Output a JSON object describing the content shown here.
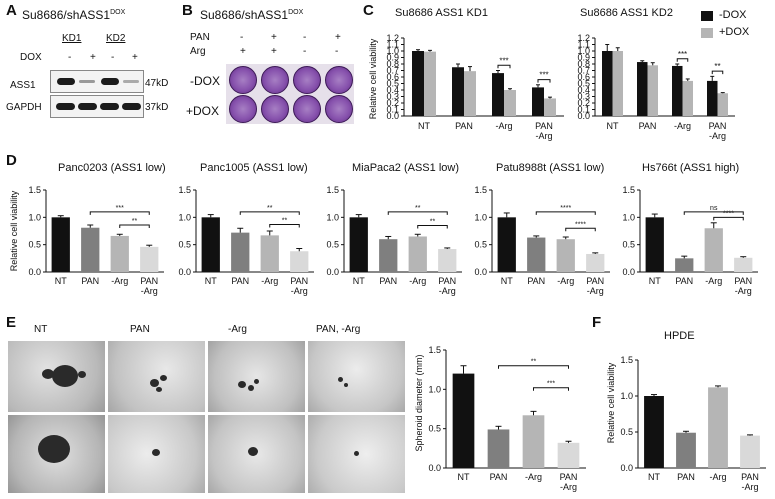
{
  "colors": {
    "black": "#111111",
    "dark_gray": "#7f7f7f",
    "light_gray": "#b5b5b5",
    "very_light_gray": "#d9d9d9",
    "purple": "#8752ad"
  },
  "panel_labels": {
    "a": "A",
    "b": "B",
    "c": "C",
    "d": "D",
    "e": "E",
    "f": "F"
  },
  "panel_a": {
    "title_main": "Su8686/shASS1",
    "title_sup": "DOX",
    "kd1": "KD1",
    "kd2": "KD2",
    "dox_label": "DOX",
    "dox_signs": [
      "-",
      "+",
      "-",
      "+"
    ],
    "rows": [
      {
        "name": "ASS1",
        "size": "47kD",
        "bands": [
          1.0,
          0.25,
          1.0,
          0.3
        ]
      },
      {
        "name": "GAPDH",
        "size": "37kD",
        "bands": [
          1.0,
          1.0,
          1.0,
          1.0
        ]
      }
    ]
  },
  "panel_b": {
    "title_main": "Su8686/shASS1",
    "title_sup": "DOX",
    "pan_label": "PAN",
    "arg_label": "Arg",
    "pan_signs": [
      "-",
      "+",
      "-",
      "+"
    ],
    "arg_signs": [
      "+",
      "+",
      "-",
      "-"
    ],
    "row_labels": [
      "-DOX",
      "+DOX"
    ]
  },
  "panel_c": {
    "legend": {
      "minus": "-DOX",
      "plus": "+DOX"
    },
    "ylabel": "Relative cell viability",
    "chart_data": [
      {
        "type": "bar",
        "title": "Su8686 ASS1 KD1",
        "categories": [
          "NT",
          "PAN",
          "-Arg",
          "PAN\n-Arg"
        ],
        "series": [
          {
            "name": "-DOX",
            "values": [
              1.0,
              0.75,
              0.66,
              0.44
            ],
            "errors": [
              0.02,
              0.05,
              0.04,
              0.04
            ]
          },
          {
            "name": "+DOX",
            "values": [
              0.99,
              0.69,
              0.4,
              0.27
            ],
            "errors": [
              0.02,
              0.07,
              0.02,
              0.02
            ]
          }
        ],
        "yticks": [
          "0.0",
          "0.1",
          "0.2",
          "0.3",
          "0.4",
          "0.5",
          "0.6",
          "0.7",
          "0.8",
          "0.9",
          "1.0",
          "1.1",
          "1.2"
        ],
        "ylim": [
          0,
          1.2
        ],
        "sig": [
          "***",
          "***"
        ]
      },
      {
        "type": "bar",
        "title": "Su8686 ASS1 KD2",
        "categories": [
          "NT",
          "PAN",
          "-Arg",
          "PAN\n-Arg"
        ],
        "series": [
          {
            "name": "-DOX",
            "values": [
              1.0,
              0.83,
              0.77,
              0.54
            ],
            "errors": [
              0.1,
              0.02,
              0.03,
              0.07
            ]
          },
          {
            "name": "+DOX",
            "values": [
              1.0,
              0.78,
              0.54,
              0.35
            ],
            "errors": [
              0.05,
              0.04,
              0.03,
              0.01
            ]
          }
        ],
        "yticks": [
          "0.0",
          "0.1",
          "0.2",
          "0.3",
          "0.4",
          "0.5",
          "0.6",
          "0.7",
          "0.8",
          "0.9",
          "1.0",
          "1.1",
          "1.2"
        ],
        "ylim": [
          0,
          1.2
        ],
        "sig": [
          "***",
          "**"
        ]
      }
    ]
  },
  "panel_d": {
    "ylabel": "Relative cell viability",
    "chart_data": [
      {
        "type": "bar",
        "title": "Panc0203 (ASS1 low)",
        "categories": [
          "NT",
          "PAN",
          "-Arg",
          "PAN\n-Arg"
        ],
        "values": [
          1.0,
          0.81,
          0.66,
          0.46
        ],
        "errors": [
          0.03,
          0.05,
          0.03,
          0.03
        ],
        "sig_top": "***",
        "sig_bottom": "**",
        "yticks": [
          "0.0",
          "0.5",
          "1.0",
          "1.5"
        ],
        "ylim": [
          0,
          1.5
        ]
      },
      {
        "type": "bar",
        "title": "Panc1005 (ASS1 low)",
        "categories": [
          "NT",
          "PAN",
          "-Arg",
          "PAN\n-Arg"
        ],
        "values": [
          1.0,
          0.72,
          0.67,
          0.38
        ],
        "errors": [
          0.05,
          0.08,
          0.08,
          0.05
        ],
        "sig_top": "**",
        "sig_bottom": "**",
        "yticks": [
          "0.0",
          "0.5",
          "1.0",
          "1.5"
        ],
        "ylim": [
          0,
          1.5
        ]
      },
      {
        "type": "bar",
        "title": "MiaPaca2 (ASS1 low)",
        "categories": [
          "NT",
          "PAN",
          "-Arg",
          "PAN\n-Arg"
        ],
        "values": [
          1.0,
          0.6,
          0.65,
          0.42
        ],
        "errors": [
          0.05,
          0.05,
          0.04,
          0.02
        ],
        "sig_top": "**",
        "sig_bottom": "**",
        "yticks": [
          "0.0",
          "0.5",
          "1.0",
          "1.5"
        ],
        "ylim": [
          0,
          1.5
        ]
      },
      {
        "type": "bar",
        "title": "Patu8988t (ASS1 low)",
        "categories": [
          "NT",
          "PAN",
          "-Arg",
          "PAN\n-Arg"
        ],
        "values": [
          1.0,
          0.63,
          0.6,
          0.33
        ],
        "errors": [
          0.08,
          0.03,
          0.04,
          0.02
        ],
        "sig_top": "****",
        "sig_bottom": "****",
        "yticks": [
          "0.0",
          "0.5",
          "1.0",
          "1.5"
        ],
        "ylim": [
          0,
          1.5
        ]
      },
      {
        "type": "bar",
        "title": "Hs766t (ASS1 high)",
        "categories": [
          "NT",
          "PAN",
          "-Arg",
          "PAN\n-Arg"
        ],
        "values": [
          1.0,
          0.25,
          0.8,
          0.26
        ],
        "errors": [
          0.06,
          0.04,
          0.1,
          0.02
        ],
        "sig_top": "ns",
        "sig_bottom": "****",
        "yticks": [
          "0.0",
          "0.5",
          "1.0",
          "1.5"
        ],
        "ylim": [
          0,
          1.5
        ]
      }
    ]
  },
  "panel_e": {
    "image_labels": [
      "NT",
      "PAN",
      "-Arg",
      "PAN, -Arg"
    ],
    "chart_data": {
      "type": "bar",
      "title": "",
      "ylabel": "Spheroid diameter (mm)",
      "categories": [
        "NT",
        "PAN",
        "-Arg",
        "PAN\n-Arg"
      ],
      "values": [
        1.2,
        0.49,
        0.67,
        0.32
      ],
      "errors": [
        0.1,
        0.04,
        0.05,
        0.02
      ],
      "sig_top": "**",
      "sig_bottom": "***",
      "yticks": [
        "0.0",
        "0.5",
        "1.0",
        "1.5"
      ],
      "ylim": [
        0,
        1.5
      ]
    }
  },
  "panel_f": {
    "chart_data": {
      "type": "bar",
      "title": "HPDE",
      "ylabel": "Relative cell viability",
      "categories": [
        "NT",
        "PAN",
        "-Arg",
        "PAN\n-Arg"
      ],
      "values": [
        1.0,
        0.49,
        1.12,
        0.45
      ],
      "errors": [
        0.02,
        0.02,
        0.02,
        0.01
      ],
      "yticks": [
        "0.0",
        "0.5",
        "1.0",
        "1.5"
      ],
      "ylim": [
        0,
        1.5
      ]
    }
  }
}
